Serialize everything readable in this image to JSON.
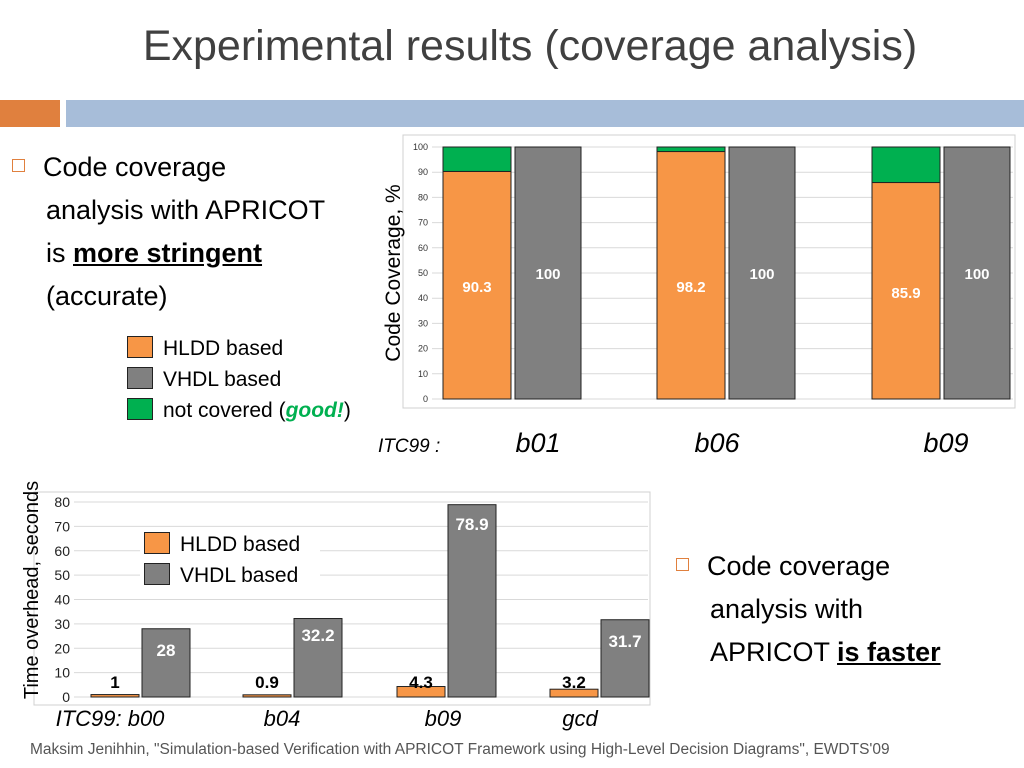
{
  "title": "Experimental results (coverage analysis)",
  "bullet1": {
    "line1": "Code coverage",
    "line2": "analysis with APRICOT",
    "line3_prefix": "is ",
    "line3_bold": "more stringent",
    "line4": "(accurate)"
  },
  "legend1": {
    "hldd": "HLDD based",
    "vhdl": "VHDL based",
    "not_covered_prefix": "not covered (",
    "not_covered_good": "good!",
    "not_covered_suffix": ")"
  },
  "bullet2": {
    "line1": "Code coverage",
    "line2": "analysis with",
    "line3_prefix": "APRICOT ",
    "line3_bold": "is faster"
  },
  "legend2": {
    "hldd": "HLDD based",
    "vhdl": "VHDL based"
  },
  "footer": "Maksim Jenihhin, \"Simulation-based Verification with APRICOT Framework using High-Level Decision Diagrams\", EWDTS'09",
  "colors": {
    "hldd": "#F79646",
    "vhdl": "#808080",
    "not_covered": "#00B050",
    "accent_orange": "#E0803E",
    "accent_blue": "#A7BDD9"
  },
  "chart_data": [
    {
      "type": "bar",
      "stacked_first_series": true,
      "ylabel": "Code Coverage, %",
      "xlabel_prefix": "ITC99 :",
      "categories": [
        "b01",
        "b06",
        "b09"
      ],
      "ylim": [
        0,
        100
      ],
      "yticks": [
        "0",
        "10",
        "20",
        "30",
        "40",
        "50",
        "60",
        "70",
        "80",
        "90",
        "100"
      ],
      "grid": true,
      "series": [
        {
          "name": "HLDD based",
          "values": [
            90.3,
            98.2,
            85.9
          ],
          "labels": [
            "90.3",
            "98.2",
            "85.9"
          ]
        },
        {
          "name": "not covered",
          "values": [
            9.7,
            1.8,
            14.1
          ]
        },
        {
          "name": "VHDL based",
          "values": [
            100,
            100,
            100
          ],
          "labels": [
            "100",
            "100",
            "100"
          ]
        }
      ]
    },
    {
      "type": "bar",
      "ylabel": "Time overhead, seconds",
      "categories": [
        "ITC99: b00",
        "b04",
        "b09",
        "gcd"
      ],
      "ylim": [
        0,
        80
      ],
      "yticks": [
        "0",
        "10",
        "20",
        "30",
        "40",
        "50",
        "60",
        "70",
        "80"
      ],
      "grid": true,
      "legend": "top-left",
      "series": [
        {
          "name": "HLDD based",
          "values": [
            1,
            0.9,
            4.3,
            3.2
          ],
          "labels": [
            "1",
            "0.9",
            "4.3",
            "3.2"
          ]
        },
        {
          "name": "VHDL based",
          "values": [
            28,
            32.2,
            78.9,
            31.7
          ],
          "labels": [
            "28",
            "32.2",
            "78.9",
            "31.7"
          ]
        }
      ]
    }
  ]
}
